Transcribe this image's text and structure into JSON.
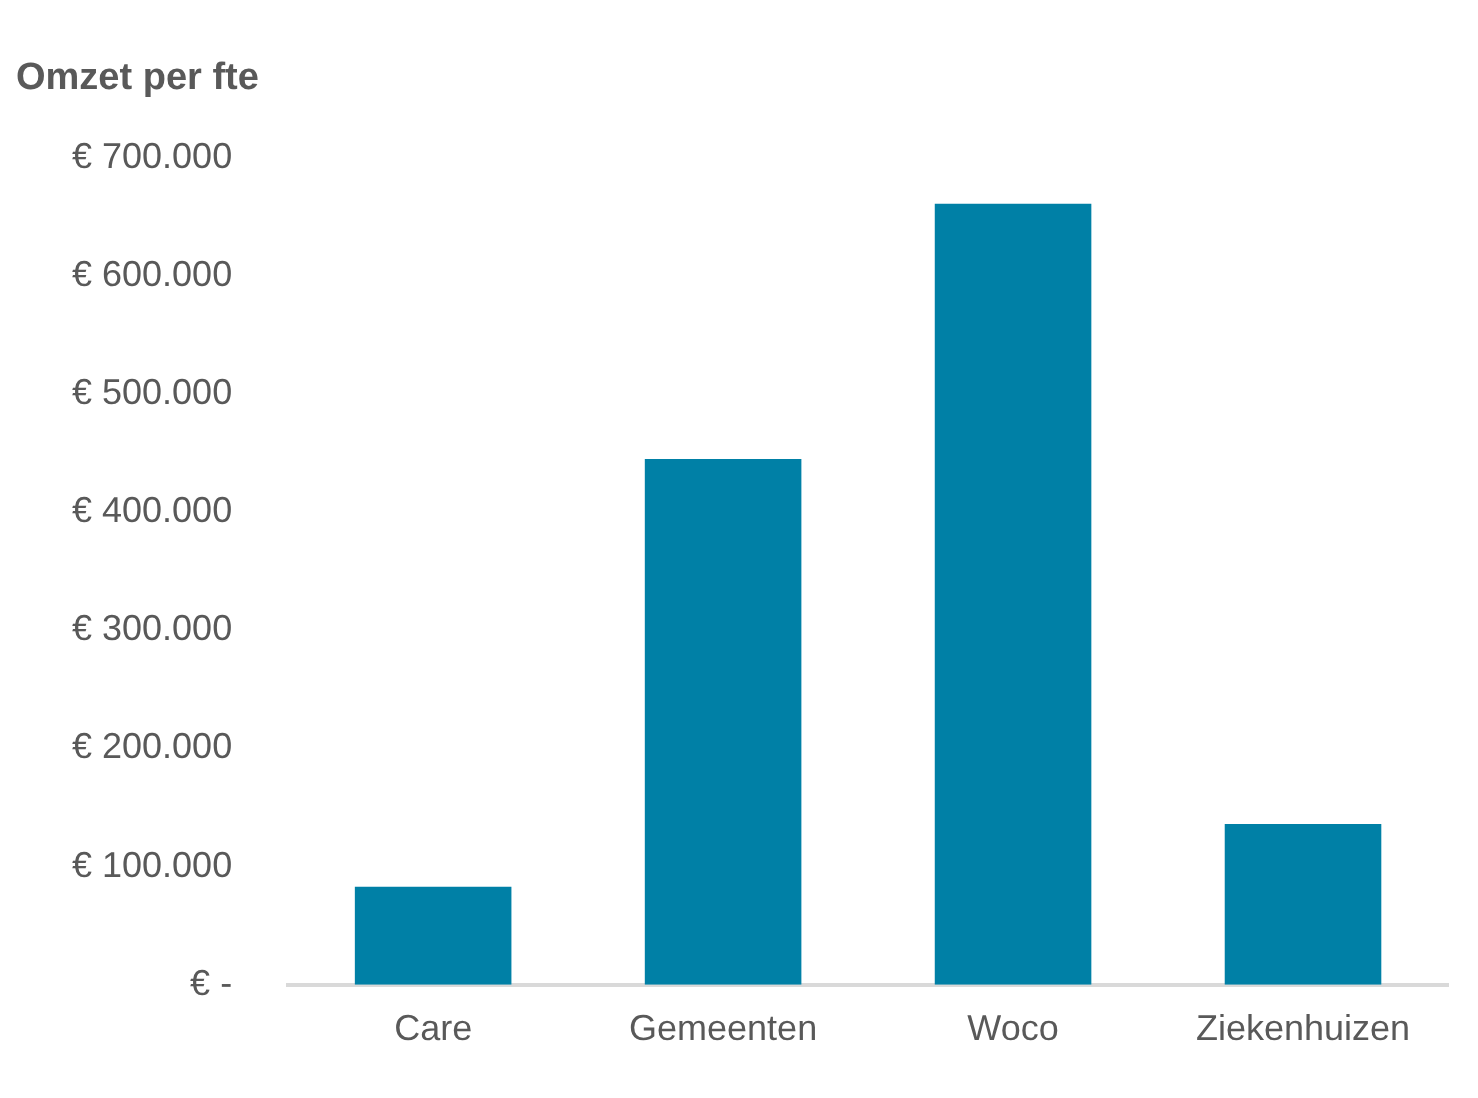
{
  "chart_data": {
    "type": "bar",
    "title": "Omzet per fte",
    "categories": [
      "Care",
      "Gemeenten",
      "Woco",
      "Ziekenhuizen"
    ],
    "values": [
      83000,
      445000,
      661000,
      136000
    ],
    "color": "#0080a6",
    "ylim": [
      0,
      700000
    ],
    "yticks": [
      {
        "value": 0,
        "label": "€ -"
      },
      {
        "value": 100000,
        "label": "€ 100.000"
      },
      {
        "value": 200000,
        "label": "€ 200.000"
      },
      {
        "value": 300000,
        "label": "€ 300.000"
      },
      {
        "value": 400000,
        "label": "€ 400.000"
      },
      {
        "value": 500000,
        "label": "€ 500.000"
      },
      {
        "value": 600000,
        "label": "€ 600.000"
      },
      {
        "value": 700000,
        "label": "€ 700.000"
      }
    ],
    "grid": false,
    "legend": false
  }
}
